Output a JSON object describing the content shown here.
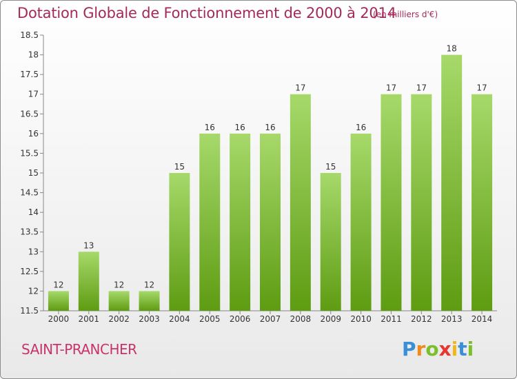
{
  "chart_data": {
    "type": "bar",
    "title": "Dotation Globale de Fonctionnement de 2000 à 2014",
    "subtitle": "(en milliers d'€)",
    "categories": [
      "2000",
      "2001",
      "2002",
      "2003",
      "2004",
      "2005",
      "2006",
      "2007",
      "2008",
      "2009",
      "2010",
      "2011",
      "2012",
      "2013",
      "2014"
    ],
    "values": [
      12,
      13,
      12,
      12,
      15,
      16,
      16,
      16,
      17,
      15,
      16,
      17,
      17,
      18,
      17
    ],
    "ylim": [
      11.5,
      18.5
    ],
    "yticks": [
      "11.5",
      "12",
      "12.5",
      "13",
      "13.5",
      "14",
      "14.5",
      "15",
      "15.5",
      "16",
      "16.5",
      "17",
      "17.5",
      "18",
      "18.5"
    ],
    "xlabel": "",
    "ylabel": "",
    "grid": false
  },
  "footer": {
    "city": "SAINT-PRANCHER",
    "brand": "Proxiti"
  },
  "colors": {
    "bar_top": "#a6d96a",
    "bar_bottom": "#5e9c12",
    "title": "#a3295a",
    "city": "#c8346a"
  }
}
